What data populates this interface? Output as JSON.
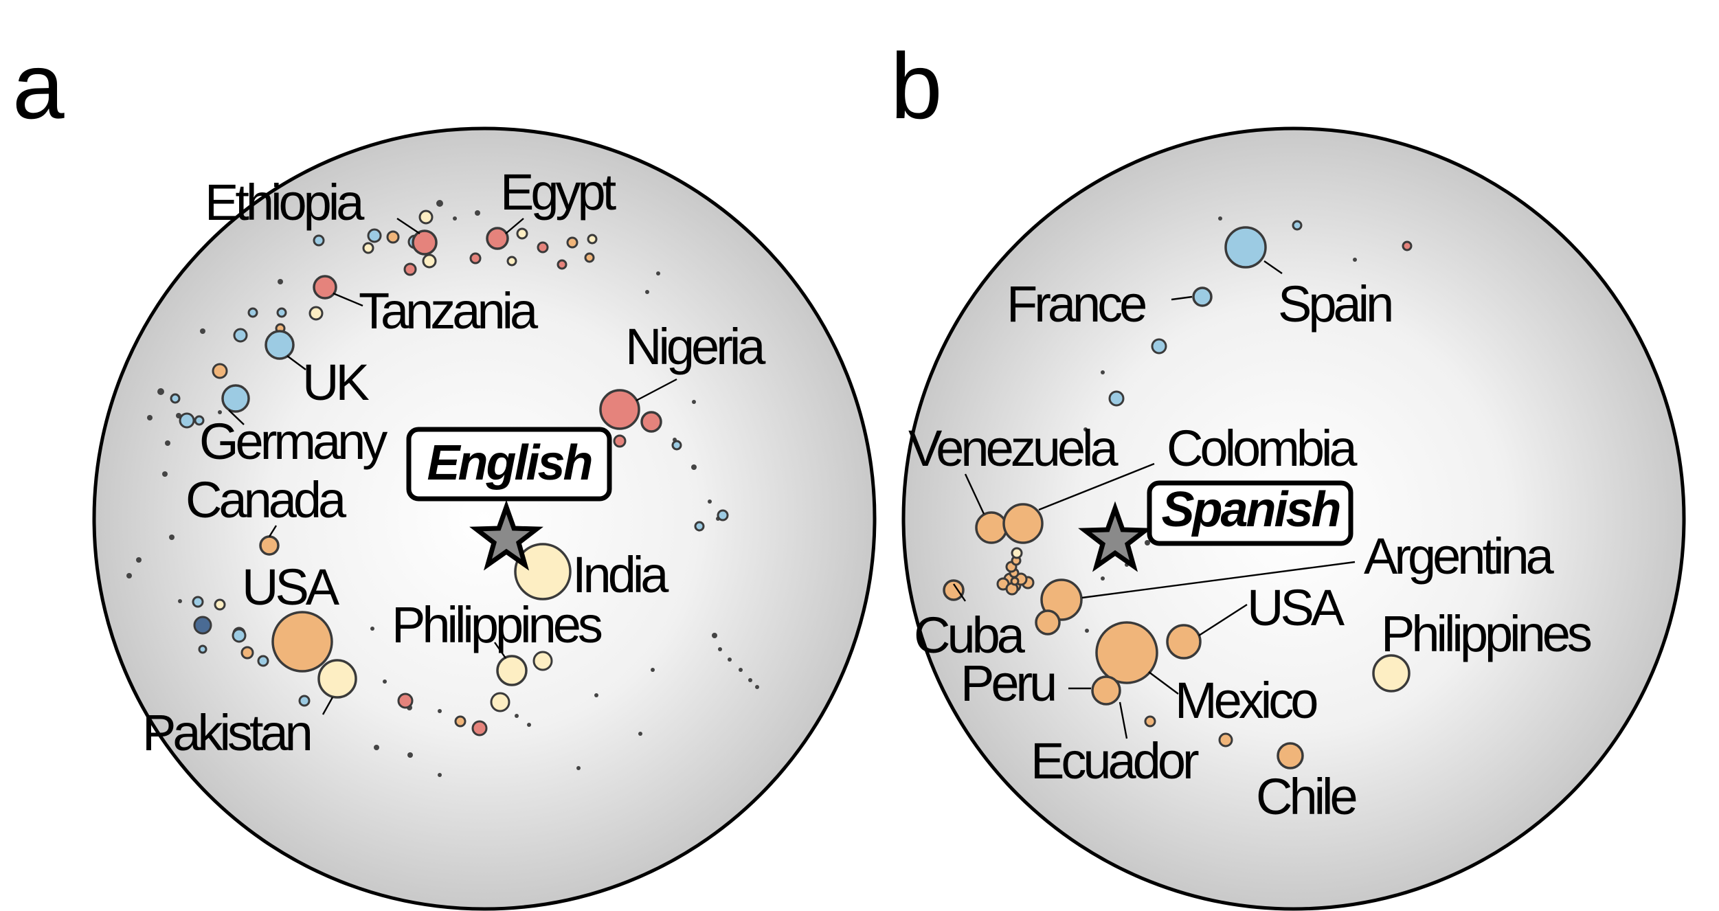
{
  "colors": {
    "blue": "#9ccbe3",
    "red": "#e5837c",
    "orange": "#f0b57a",
    "cream": "#fdeec3",
    "darkblue": "#4a6b94",
    "disk_center": "#ffffff",
    "disk_edge": "#c9c9c9",
    "star": "#8a8a8a"
  },
  "panels": [
    {
      "letter": "a",
      "language": "English",
      "center_icon": "star-icon",
      "countries": [
        {
          "name": "Ethiopia",
          "color": "red"
        },
        {
          "name": "Egypt",
          "color": "red"
        },
        {
          "name": "Tanzania",
          "color": "red"
        },
        {
          "name": "Nigeria",
          "color": "red"
        },
        {
          "name": "UK",
          "color": "blue"
        },
        {
          "name": "Germany",
          "color": "blue"
        },
        {
          "name": "Canada",
          "color": "orange"
        },
        {
          "name": "USA",
          "color": "orange"
        },
        {
          "name": "India",
          "color": "cream"
        },
        {
          "name": "Philippines",
          "color": "cream"
        },
        {
          "name": "Pakistan",
          "color": "cream"
        }
      ]
    },
    {
      "letter": "b",
      "language": "Spanish",
      "center_icon": "star-icon",
      "countries": [
        {
          "name": "France",
          "color": "blue"
        },
        {
          "name": "Spain",
          "color": "blue"
        },
        {
          "name": "Venezuela",
          "color": "orange"
        },
        {
          "name": "Colombia",
          "color": "orange"
        },
        {
          "name": "Argentina",
          "color": "orange"
        },
        {
          "name": "USA",
          "color": "orange"
        },
        {
          "name": "Philippines",
          "color": "cream"
        },
        {
          "name": "Cuba",
          "color": "orange"
        },
        {
          "name": "Peru",
          "color": "orange"
        },
        {
          "name": "Mexico",
          "color": "orange"
        },
        {
          "name": "Ecuador",
          "color": "orange"
        },
        {
          "name": "Chile",
          "color": "orange"
        }
      ]
    }
  ]
}
